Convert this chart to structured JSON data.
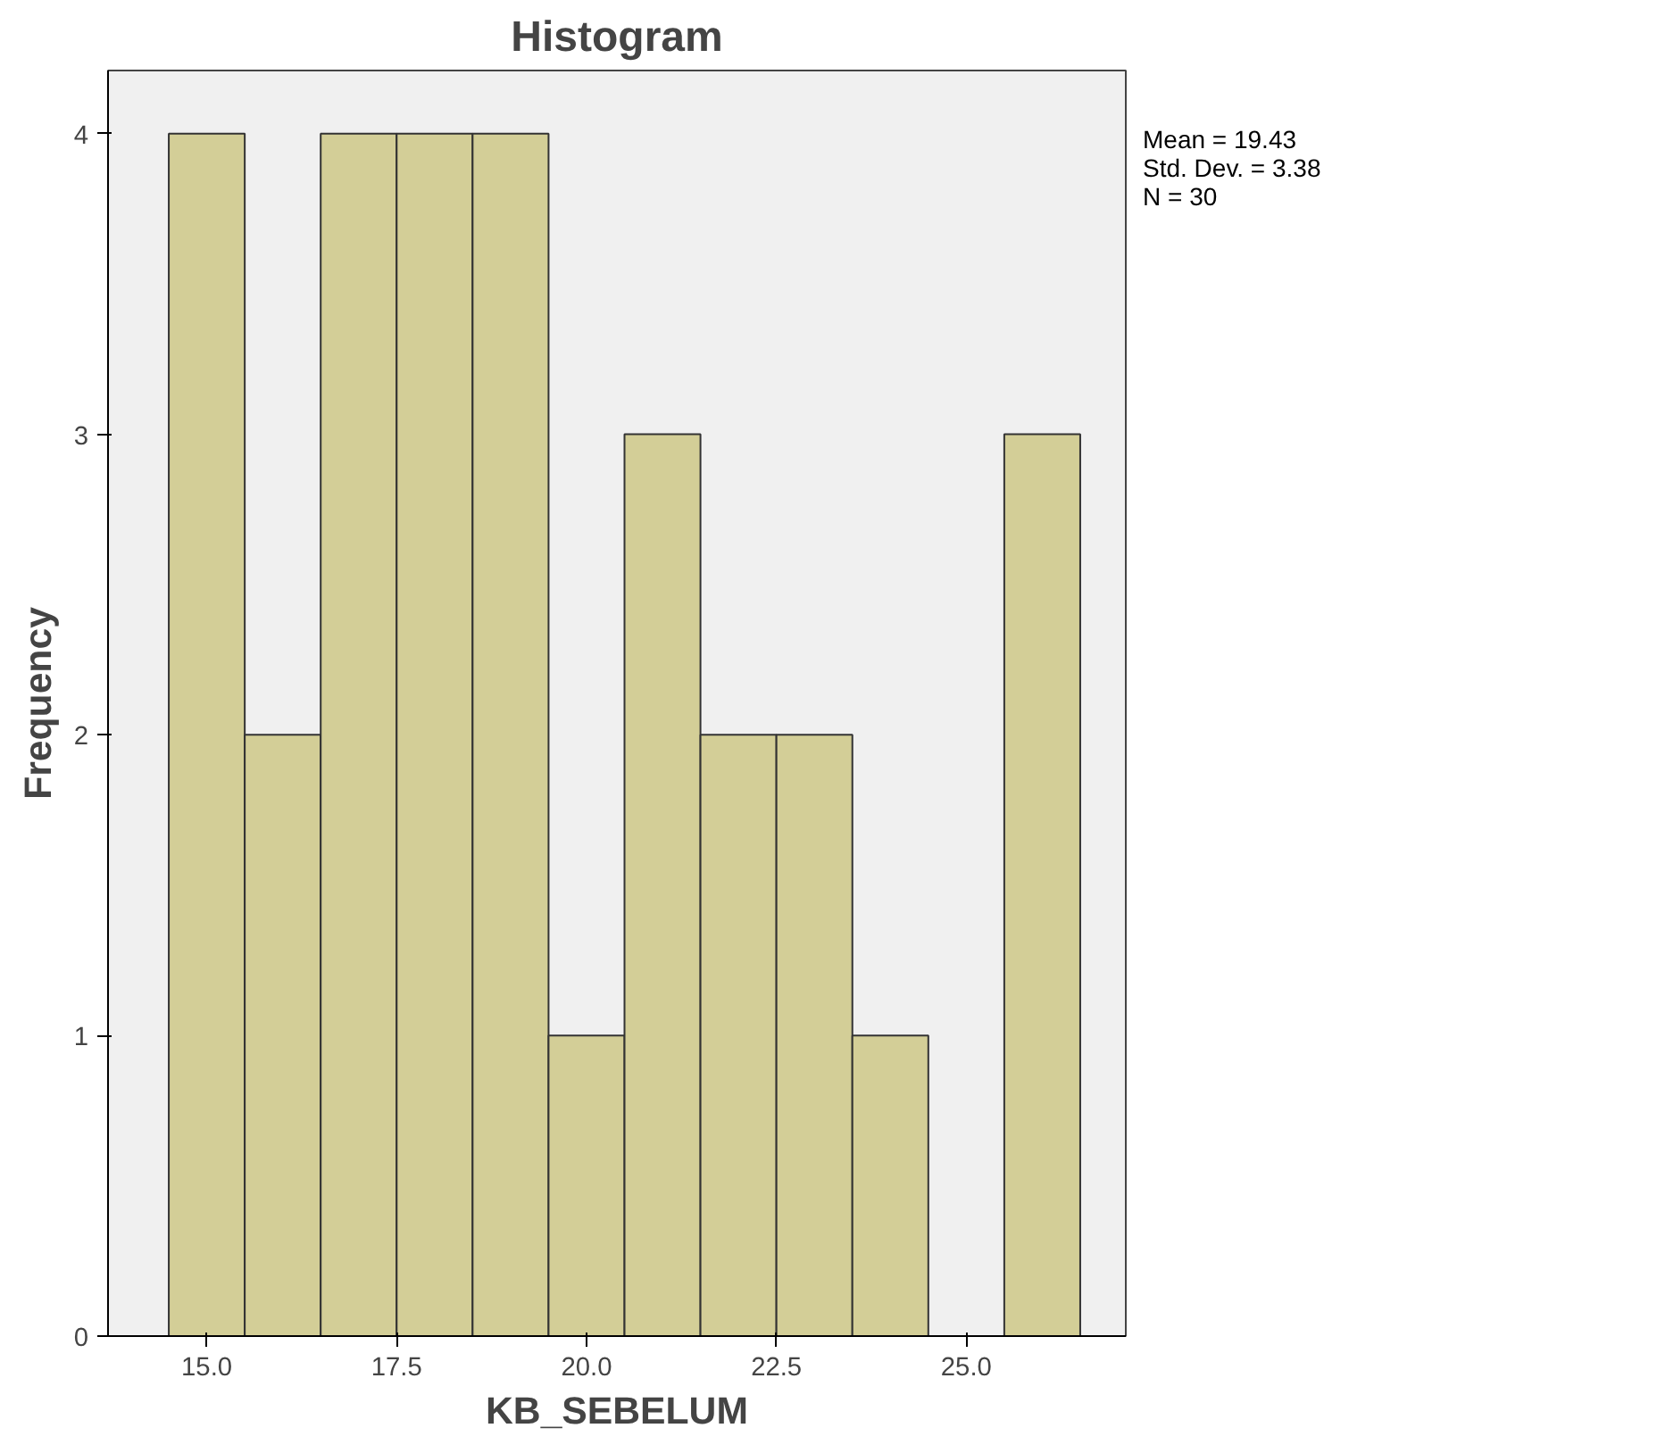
{
  "chart_data": {
    "type": "histogram",
    "title": "Histogram",
    "xlabel": "KB_SEBELUM",
    "ylabel": "Frequency",
    "bins": [
      14.5,
      15.5,
      16.5,
      17.5,
      18.5,
      19.5,
      20.5,
      21.5,
      22.5,
      23.5,
      24.5,
      25.5,
      26.5
    ],
    "values": [
      4,
      2,
      4,
      4,
      4,
      1,
      3,
      2,
      2,
      1,
      0,
      3
    ],
    "color": "#d3ce97",
    "xlim": [
      13.7,
      27.1
    ],
    "ylim": [
      0,
      4.21
    ],
    "xticks": [
      {
        "value": 15,
        "label": "15.0"
      },
      {
        "value": 17.5,
        "label": "17.5"
      },
      {
        "value": 20,
        "label": "20.0"
      },
      {
        "value": 22.5,
        "label": "22.5"
      },
      {
        "value": 25,
        "label": "25.0"
      }
    ],
    "yticks": [
      0,
      1,
      2,
      3,
      4
    ],
    "grid": false,
    "annotations": [
      "Mean = 19.43",
      "Std. Dev. = 3.38",
      "N = 30"
    ]
  }
}
